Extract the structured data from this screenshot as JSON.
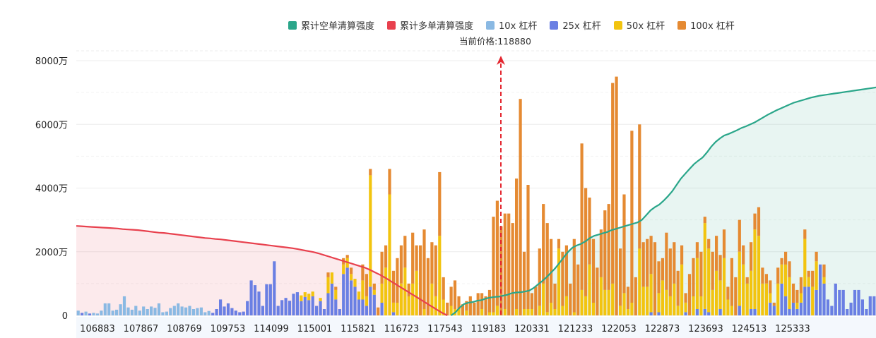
{
  "legend": [
    {
      "label": "累计空单清算强度",
      "color": "#2aa68a"
    },
    {
      "label": "累计多单清算强度",
      "color": "#e8414e"
    },
    {
      "label": "10x 杠杆",
      "color": "#8ab9e3"
    },
    {
      "label": "25x 杠杆",
      "color": "#6a7fe3"
    },
    {
      "label": "50x 杠杆",
      "color": "#f2c40f"
    },
    {
      "label": "100x 杠杆",
      "color": "#e58a32"
    }
  ],
  "current_price": {
    "label": "当前价格:",
    "value": "118880"
  },
  "chart_data": {
    "type": "bar",
    "ylim": [
      0,
      8000
    ],
    "yunit": "万",
    "yticks": [
      "0",
      "2000万",
      "4000万",
      "6000万",
      "8000万"
    ],
    "xticks": [
      "106883",
      "107867",
      "108769",
      "109753",
      "114099",
      "115001",
      "115821",
      "116723",
      "117543",
      "119183",
      "120331",
      "121233",
      "122053",
      "122873",
      "123693",
      "124513",
      "125333"
    ],
    "bars": [
      [
        150,
        0,
        0,
        0
      ],
      [
        0,
        80,
        0,
        0
      ],
      [
        120,
        0,
        0,
        0
      ],
      [
        0,
        60,
        0,
        0
      ],
      [
        80,
        0,
        0,
        0
      ],
      [
        60,
        0,
        0,
        0
      ],
      [
        150,
        0,
        0,
        0
      ],
      [
        380,
        0,
        0,
        0
      ],
      [
        380,
        0,
        0,
        0
      ],
      [
        150,
        0,
        0,
        0
      ],
      [
        180,
        0,
        0,
        0
      ],
      [
        350,
        0,
        0,
        0
      ],
      [
        600,
        0,
        0,
        0
      ],
      [
        250,
        0,
        0,
        0
      ],
      [
        180,
        0,
        0,
        0
      ],
      [
        300,
        0,
        0,
        0
      ],
      [
        150,
        0,
        0,
        0
      ],
      [
        280,
        0,
        0,
        0
      ],
      [
        200,
        0,
        0,
        0
      ],
      [
        280,
        0,
        0,
        0
      ],
      [
        240,
        0,
        0,
        0
      ],
      [
        380,
        0,
        0,
        0
      ],
      [
        100,
        0,
        0,
        0
      ],
      [
        120,
        0,
        0,
        0
      ],
      [
        230,
        0,
        0,
        0
      ],
      [
        300,
        0,
        0,
        0
      ],
      [
        380,
        0,
        0,
        0
      ],
      [
        280,
        0,
        0,
        0
      ],
      [
        250,
        0,
        0,
        0
      ],
      [
        300,
        0,
        0,
        0
      ],
      [
        200,
        0,
        0,
        0
      ],
      [
        230,
        0,
        0,
        0
      ],
      [
        250,
        0,
        0,
        0
      ],
      [
        100,
        0,
        0,
        0
      ],
      [
        140,
        0,
        0,
        0
      ],
      [
        0,
        80,
        0,
        0
      ],
      [
        0,
        200,
        0,
        0
      ],
      [
        0,
        500,
        0,
        0
      ],
      [
        0,
        280,
        0,
        0
      ],
      [
        0,
        380,
        0,
        0
      ],
      [
        0,
        230,
        0,
        0
      ],
      [
        0,
        150,
        0,
        0
      ],
      [
        0,
        100,
        0,
        0
      ],
      [
        0,
        120,
        0,
        0
      ],
      [
        0,
        450,
        0,
        0
      ],
      [
        0,
        1100,
        0,
        0
      ],
      [
        0,
        950,
        0,
        0
      ],
      [
        0,
        750,
        0,
        0
      ],
      [
        0,
        300,
        0,
        0
      ],
      [
        0,
        980,
        0,
        0
      ],
      [
        0,
        980,
        0,
        0
      ],
      [
        0,
        1700,
        0,
        0
      ],
      [
        0,
        300,
        0,
        0
      ],
      [
        0,
        480,
        0,
        0
      ],
      [
        0,
        550,
        0,
        0
      ],
      [
        0,
        460,
        0,
        0
      ],
      [
        0,
        680,
        0,
        0
      ],
      [
        0,
        730,
        0,
        0
      ],
      [
        0,
        450,
        180,
        0
      ],
      [
        0,
        580,
        150,
        0
      ],
      [
        0,
        480,
        200,
        0
      ],
      [
        0,
        600,
        150,
        0
      ],
      [
        0,
        300,
        0,
        0
      ],
      [
        0,
        450,
        100,
        0
      ],
      [
        0,
        200,
        0,
        0
      ],
      [
        0,
        700,
        500,
        150
      ],
      [
        0,
        1000,
        350,
        0
      ],
      [
        0,
        500,
        300,
        100
      ],
      [
        0,
        200,
        0,
        0
      ],
      [
        0,
        1300,
        300,
        200
      ],
      [
        0,
        1500,
        300,
        100
      ],
      [
        0,
        1100,
        200,
        200
      ],
      [
        0,
        900,
        250,
        0
      ],
      [
        0,
        500,
        250,
        0
      ],
      [
        0,
        500,
        600,
        500
      ],
      [
        0,
        300,
        300,
        700
      ],
      [
        0,
        900,
        3500,
        200
      ],
      [
        0,
        650,
        150,
        200
      ],
      [
        0,
        0,
        0,
        250
      ],
      [
        0,
        400,
        600,
        1000
      ],
      [
        0,
        0,
        1500,
        700
      ],
      [
        0,
        0,
        3800,
        800
      ],
      [
        0,
        100,
        300,
        1000
      ],
      [
        0,
        0,
        400,
        1400
      ],
      [
        0,
        0,
        1000,
        1200
      ],
      [
        0,
        0,
        1500,
        1000
      ],
      [
        0,
        0,
        600,
        400
      ],
      [
        0,
        0,
        1000,
        1600
      ],
      [
        0,
        0,
        1400,
        800
      ],
      [
        0,
        0,
        0,
        2200
      ],
      [
        0,
        0,
        200,
        2500
      ],
      [
        0,
        0,
        0,
        1800
      ],
      [
        0,
        0,
        1000,
        1300
      ],
      [
        0,
        0,
        600,
        1600
      ],
      [
        0,
        0,
        2500,
        2000
      ],
      [
        0,
        0,
        500,
        700
      ],
      [
        0,
        0,
        0,
        400
      ],
      [
        0,
        0,
        300,
        600
      ],
      [
        0,
        0,
        200,
        900
      ],
      [
        0,
        0,
        200,
        400
      ],
      [
        0,
        0,
        0,
        350
      ],
      [
        0,
        0,
        150,
        300
      ],
      [
        0,
        0,
        0,
        600
      ],
      [
        0,
        0,
        0,
        400
      ],
      [
        0,
        0,
        0,
        700
      ],
      [
        0,
        0,
        200,
        500
      ],
      [
        0,
        0,
        0,
        600
      ],
      [
        0,
        0,
        100,
        700
      ],
      [
        0,
        0,
        100,
        3000
      ],
      [
        0,
        0,
        300,
        3300
      ],
      [
        0,
        0,
        0,
        2800
      ],
      [
        0,
        0,
        200,
        3000
      ],
      [
        0,
        0,
        0,
        3200
      ],
      [
        0,
        0,
        0,
        2900
      ],
      [
        0,
        0,
        200,
        4100
      ],
      [
        0,
        0,
        0,
        6800
      ],
      [
        0,
        0,
        200,
        1800
      ],
      [
        0,
        0,
        200,
        3900
      ],
      [
        0,
        0,
        200,
        500
      ],
      [
        0,
        0,
        0,
        900
      ],
      [
        0,
        0,
        300,
        1800
      ],
      [
        0,
        0,
        1000,
        2500
      ],
      [
        0,
        0,
        100,
        2800
      ],
      [
        0,
        0,
        400,
        2000
      ],
      [
        0,
        0,
        200,
        800
      ],
      [
        0,
        0,
        2100,
        300
      ],
      [
        0,
        0,
        300,
        1700
      ],
      [
        0,
        0,
        600,
        1600
      ],
      [
        0,
        0,
        0,
        1000
      ],
      [
        0,
        0,
        100,
        2300
      ],
      [
        0,
        0,
        0,
        1600
      ],
      [
        0,
        0,
        800,
        4600
      ],
      [
        0,
        0,
        600,
        3400
      ],
      [
        0,
        0,
        1600,
        2100
      ],
      [
        0,
        0,
        400,
        2000
      ],
      [
        0,
        0,
        0,
        1500
      ],
      [
        0,
        0,
        1200,
        1500
      ],
      [
        0,
        0,
        800,
        2500
      ],
      [
        0,
        0,
        800,
        2700
      ],
      [
        0,
        0,
        1000,
        6300
      ],
      [
        0,
        0,
        0,
        7500
      ],
      [
        0,
        0,
        300,
        1800
      ],
      [
        0,
        0,
        700,
        3100
      ],
      [
        0,
        0,
        200,
        700
      ],
      [
        0,
        0,
        400,
        5400
      ],
      [
        0,
        0,
        0,
        1200
      ],
      [
        0,
        0,
        2100,
        3900
      ],
      [
        0,
        0,
        900,
        1400
      ],
      [
        0,
        0,
        900,
        1500
      ],
      [
        0,
        100,
        1200,
        1200
      ],
      [
        0,
        0,
        0,
        2300
      ],
      [
        0,
        100,
        600,
        1000
      ],
      [
        0,
        0,
        1100,
        700
      ],
      [
        0,
        0,
        800,
        1800
      ],
      [
        0,
        0,
        600,
        1500
      ],
      [
        0,
        0,
        1000,
        1300
      ],
      [
        0,
        0,
        300,
        1100
      ],
      [
        0,
        0,
        1600,
        600
      ],
      [
        0,
        100,
        300,
        300
      ],
      [
        0,
        0,
        0,
        1300
      ],
      [
        0,
        0,
        600,
        1200
      ],
      [
        0,
        200,
        1600,
        500
      ],
      [
        0,
        0,
        600,
        1400
      ],
      [
        0,
        200,
        2700,
        200
      ],
      [
        0,
        100,
        2000,
        300
      ],
      [
        0,
        0,
        800,
        1200
      ],
      [
        0,
        0,
        1400,
        1100
      ],
      [
        0,
        200,
        900,
        800
      ],
      [
        0,
        0,
        1800,
        900
      ],
      [
        0,
        0,
        500,
        400
      ],
      [
        0,
        0,
        300,
        1500
      ],
      [
        0,
        0,
        0,
        1200
      ],
      [
        0,
        300,
        1700,
        1000
      ],
      [
        0,
        0,
        1600,
        600
      ],
      [
        0,
        0,
        1000,
        200
      ],
      [
        0,
        200,
        1200,
        900
      ],
      [
        0,
        200,
        2500,
        500
      ],
      [
        0,
        0,
        2500,
        900
      ],
      [
        0,
        0,
        1000,
        500
      ],
      [
        0,
        0,
        1000,
        300
      ],
      [
        0,
        400,
        300,
        400
      ],
      [
        0,
        300,
        0,
        100
      ],
      [
        0,
        0,
        1000,
        500
      ],
      [
        0,
        1000,
        600,
        200
      ],
      [
        0,
        600,
        1000,
        400
      ],
      [
        0,
        200,
        1000,
        500
      ],
      [
        0,
        400,
        0,
        600
      ],
      [
        0,
        200,
        200,
        400
      ],
      [
        0,
        400,
        300,
        500
      ],
      [
        0,
        900,
        1500,
        300
      ],
      [
        0,
        900,
        300,
        200
      ],
      [
        0,
        0,
        900,
        500
      ],
      [
        0,
        800,
        900,
        300
      ],
      [
        0,
        1600,
        0,
        0
      ],
      [
        0,
        1000,
        200,
        400
      ],
      [
        0,
        500,
        0,
        0
      ],
      [
        0,
        300,
        0,
        0
      ],
      [
        0,
        1000,
        0,
        0
      ],
      [
        0,
        800,
        0,
        0
      ],
      [
        0,
        800,
        0,
        0
      ],
      [
        0,
        200,
        0,
        0
      ],
      [
        0,
        400,
        0,
        0
      ],
      [
        0,
        800,
        0,
        0
      ],
      [
        0,
        800,
        0,
        0
      ],
      [
        0,
        500,
        0,
        0
      ],
      [
        0,
        200,
        0,
        0
      ],
      [
        0,
        600,
        0,
        0
      ],
      [
        0,
        600,
        0,
        0
      ]
    ],
    "long_curve": {
      "x_end_index": 96,
      "values": [
        2810,
        2800,
        2790,
        2780,
        2770,
        2760,
        2750,
        2740,
        2730,
        2710,
        2700,
        2690,
        2680,
        2660,
        2640,
        2620,
        2600,
        2590,
        2570,
        2550,
        2530,
        2510,
        2490,
        2470,
        2450,
        2430,
        2420,
        2400,
        2390,
        2370,
        2350,
        2330,
        2310,
        2290,
        2270,
        2250,
        2230,
        2210,
        2190,
        2170,
        2150,
        2130,
        2110,
        2080,
        2050,
        2020,
        1990,
        1950,
        1900,
        1850,
        1800,
        1750,
        1700,
        1650,
        1600,
        1550,
        1500,
        1430,
        1350,
        1270,
        1180,
        1080,
        980,
        880,
        780,
        680,
        580,
        480,
        380,
        280,
        180,
        80,
        0
      ]
    },
    "short_curve": {
      "x_start_index": 97,
      "values": [
        0,
        100,
        250,
        360,
        400,
        420,
        460,
        480,
        530,
        560,
        580,
        590,
        620,
        650,
        700,
        720,
        730,
        750,
        780,
        860,
        970,
        1080,
        1200,
        1340,
        1480,
        1650,
        1830,
        2000,
        2130,
        2200,
        2250,
        2330,
        2430,
        2500,
        2540,
        2580,
        2620,
        2680,
        2720,
        2760,
        2800,
        2840,
        2880,
        2920,
        3000,
        3150,
        3300,
        3400,
        3480,
        3600,
        3740,
        3900,
        4100,
        4300,
        4450,
        4600,
        4750,
        4860,
        4960,
        5120,
        5300,
        5450,
        5560,
        5650,
        5700,
        5760,
        5820,
        5890,
        5940,
        6000,
        6060,
        6140,
        6220,
        6300,
        6370,
        6440,
        6500,
        6560,
        6620,
        6680,
        6720,
        6760,
        6800,
        6840,
        6870,
        6900,
        6920,
        6940,
        6960,
        6980,
        7000,
        7020,
        7040,
        7060,
        7080,
        7100,
        7120,
        7140,
        7160
      ]
    },
    "current_price_index": 95
  }
}
